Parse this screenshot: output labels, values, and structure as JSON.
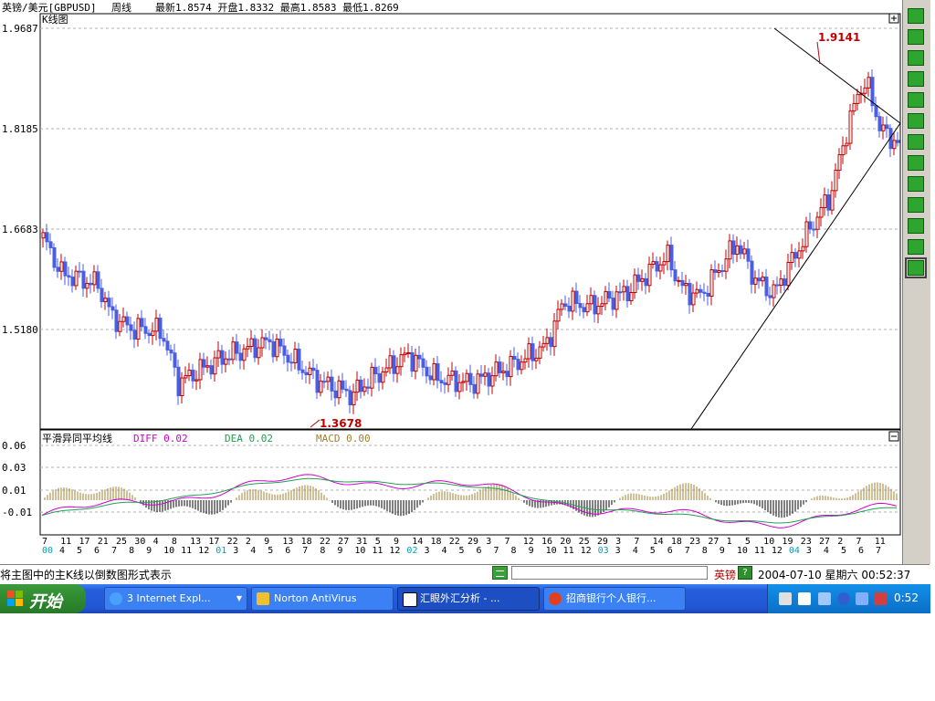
{
  "window": {
    "symbol": "英镑/美元[GBPUSD]",
    "period": "周线",
    "latest_label": "最新",
    "latest": "1.8574",
    "open_label": "开盘",
    "open": "1.8332",
    "high_label": "最高",
    "high": "1.8583",
    "low_label": "最低",
    "low": "1.8269"
  },
  "kpanel": {
    "title": "K线图",
    "expand_icon": "plus-box-icon",
    "price_ticks": [
      "1.9687",
      "1.8185",
      "1.6683",
      "1.5180"
    ],
    "high_marker": "1.9141",
    "low_marker": "1.3678"
  },
  "macd": {
    "title": "平滑异同平均线",
    "diff_label": "DIFF",
    "diff_value": "0.02",
    "dea_label": "DEA",
    "dea_value": "0.02",
    "macd_label": "MACD",
    "macd_value": "0.00",
    "ticks": [
      "0.06",
      "0.03",
      "0.01",
      "-0.01"
    ],
    "collapse_icon": "minus-box-icon"
  },
  "xaxis": {
    "row1": [
      "7",
      "11",
      "17",
      "21",
      "25",
      "30",
      "4",
      "8",
      "13",
      "17",
      "22",
      "2",
      "9",
      "13",
      "18",
      "22",
      "27",
      "31",
      "5",
      "9",
      "14",
      "18",
      "22",
      "29",
      "3",
      "7",
      "12",
      "16",
      "20",
      "25",
      "29",
      "3",
      "7",
      "14",
      "18",
      "23",
      "27",
      "1",
      "5",
      "10",
      "19",
      "23",
      "27",
      "2",
      "7",
      "11"
    ],
    "row2": [
      "00",
      "4",
      "5",
      "6",
      "7",
      "8",
      "9",
      "10",
      "11",
      "12",
      "01",
      "3",
      "4",
      "5",
      "6",
      "7",
      "8",
      "9",
      "10",
      "11",
      "12",
      "02",
      "3",
      "4",
      "5",
      "6",
      "7",
      "8",
      "9",
      "10",
      "11",
      "12",
      "03",
      "3",
      "4",
      "5",
      "6",
      "7",
      "8",
      "9",
      "10",
      "11",
      "12",
      "04",
      "3",
      "4",
      "5",
      "6",
      "7"
    ]
  },
  "status": {
    "message": "将主图中的主K线以倒数图形式表示",
    "symbol": "英镑",
    "datetime": "2004-07-10 星期六  00:52:37"
  },
  "toolbar": {
    "tools": [
      "cursor-tool-icon",
      "text-tool-icon",
      "line-tool-icon",
      "ray-tool-icon",
      "arrow-tool-icon",
      "channel-tool-icon",
      "fan-tool-icon",
      "grid-tool-icon",
      "gann-tool-icon",
      "fib-tool-icon",
      "period-tool-icon",
      "rect-tool-icon",
      "delete-tool-icon"
    ]
  },
  "taskbar": {
    "start": "开始",
    "tasks": [
      "3 Internet Expl...",
      "Norton AntiVirus",
      "汇眼外汇分析 - ...",
      "招商银行个人银行..."
    ],
    "clock": "0:52"
  },
  "colors": {
    "up": "#c00000",
    "down": "#4a5ee0",
    "diff": "#d000d0",
    "dea": "#20a050",
    "macd": "#a08030",
    "grid": "#b0b0b0"
  }
}
